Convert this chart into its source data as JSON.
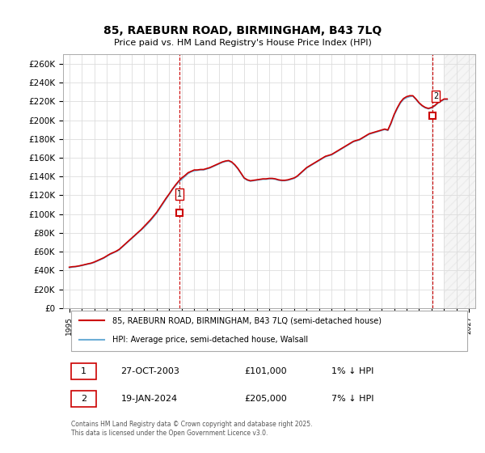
{
  "title": "85, RAEBURN ROAD, BIRMINGHAM, B43 7LQ",
  "subtitle": "Price paid vs. HM Land Registry's House Price Index (HPI)",
  "ylabel_ticks": [
    0,
    20000,
    40000,
    60000,
    80000,
    100000,
    120000,
    140000,
    160000,
    180000,
    200000,
    220000,
    240000,
    260000
  ],
  "ylabel_labels": [
    "£0",
    "£20K",
    "£40K",
    "£60K",
    "£80K",
    "£100K",
    "£120K",
    "£140K",
    "£160K",
    "£180K",
    "£200K",
    "£220K",
    "£240K",
    "£260K"
  ],
  "xlim": [
    1994.5,
    2027.5
  ],
  "ylim": [
    0,
    270000
  ],
  "hpi_color": "#6daed6",
  "price_color": "#cc0000",
  "marker_color": "#cc0000",
  "background_color": "#ffffff",
  "grid_color": "#dddddd",
  "sale1_x": 2003.82,
  "sale1_y": 101000,
  "sale1_label": "1",
  "sale2_x": 2024.05,
  "sale2_y": 205000,
  "sale2_label": "2",
  "legend_line1": "85, RAEBURN ROAD, BIRMINGHAM, B43 7LQ (semi-detached house)",
  "legend_line2": "HPI: Average price, semi-detached house, Walsall",
  "table_row1": [
    "1",
    "27-OCT-2003",
    "£101,000",
    "1% ↓ HPI"
  ],
  "table_row2": [
    "2",
    "19-JAN-2024",
    "£205,000",
    "7% ↓ HPI"
  ],
  "copyright": "Contains HM Land Registry data © Crown copyright and database right 2025.\nThis data is licensed under the Open Government Licence v3.0.",
  "hpi_years": [
    1995,
    1995.25,
    1995.5,
    1995.75,
    1996,
    1996.25,
    1996.5,
    1996.75,
    1997,
    1997.25,
    1997.5,
    1997.75,
    1998,
    1998.25,
    1998.5,
    1998.75,
    1999,
    1999.25,
    1999.5,
    1999.75,
    2000,
    2000.25,
    2000.5,
    2000.75,
    2001,
    2001.25,
    2001.5,
    2001.75,
    2002,
    2002.25,
    2002.5,
    2002.75,
    2003,
    2003.25,
    2003.5,
    2003.75,
    2004,
    2004.25,
    2004.5,
    2004.75,
    2005,
    2005.25,
    2005.5,
    2005.75,
    2006,
    2006.25,
    2006.5,
    2006.75,
    2007,
    2007.25,
    2007.5,
    2007.75,
    2008,
    2008.25,
    2008.5,
    2008.75,
    2009,
    2009.25,
    2009.5,
    2009.75,
    2010,
    2010.25,
    2010.5,
    2010.75,
    2011,
    2011.25,
    2011.5,
    2011.75,
    2012,
    2012.25,
    2012.5,
    2012.75,
    2013,
    2013.25,
    2013.5,
    2013.75,
    2014,
    2014.25,
    2014.5,
    2014.75,
    2015,
    2015.25,
    2015.5,
    2015.75,
    2016,
    2016.25,
    2016.5,
    2016.75,
    2017,
    2017.25,
    2017.5,
    2017.75,
    2018,
    2018.25,
    2018.5,
    2018.75,
    2019,
    2019.25,
    2019.5,
    2019.75,
    2020,
    2020.25,
    2020.5,
    2020.75,
    2021,
    2021.25,
    2021.5,
    2021.75,
    2022,
    2022.25,
    2022.5,
    2022.75,
    2023,
    2023.25,
    2023.5,
    2023.75,
    2024,
    2024.25,
    2024.5,
    2024.75,
    2025,
    2025.25
  ],
  "hpi_values": [
    43000,
    43500,
    44000,
    44500,
    45200,
    46000,
    46800,
    47500,
    48500,
    50000,
    51500,
    53000,
    55000,
    57000,
    58500,
    60000,
    62000,
    65000,
    68000,
    71000,
    74000,
    77000,
    80000,
    83000,
    86000,
    89500,
    93000,
    97000,
    101000,
    106000,
    111000,
    116000,
    121000,
    126000,
    130000,
    134000,
    137000,
    140000,
    143000,
    145000,
    146000,
    146500,
    147000,
    147000,
    148000,
    149000,
    150500,
    152000,
    153500,
    155000,
    156000,
    156500,
    155000,
    152000,
    148000,
    143000,
    138000,
    136000,
    135000,
    135500,
    136000,
    136500,
    137000,
    137000,
    137500,
    137500,
    137000,
    136000,
    135500,
    135500,
    136000,
    137000,
    138000,
    140000,
    143000,
    146000,
    149000,
    151000,
    153000,
    155000,
    157000,
    159000,
    161000,
    162000,
    163000,
    165000,
    167000,
    169000,
    171000,
    173000,
    175000,
    177000,
    178000,
    179000,
    181000,
    183000,
    185000,
    186000,
    187000,
    188000,
    189000,
    190000,
    189000,
    196000,
    205000,
    212000,
    218000,
    222000,
    224000,
    225000,
    225500,
    222000,
    218000,
    215000,
    213000,
    212000,
    213000,
    215000,
    218000,
    220000,
    222000,
    222000
  ],
  "price_years": [
    1995,
    1995.25,
    1995.5,
    1995.75,
    1996,
    1996.25,
    1996.5,
    1996.75,
    1997,
    1997.25,
    1997.5,
    1997.75,
    1998,
    1998.25,
    1998.5,
    1998.75,
    1999,
    1999.25,
    1999.5,
    1999.75,
    2000,
    2000.25,
    2000.5,
    2000.75,
    2001,
    2001.25,
    2001.5,
    2001.75,
    2002,
    2002.25,
    2002.5,
    2002.75,
    2003,
    2003.25,
    2003.5,
    2003.75,
    2004,
    2004.25,
    2004.5,
    2004.75,
    2005,
    2005.25,
    2005.5,
    2005.75,
    2006,
    2006.25,
    2006.5,
    2006.75,
    2007,
    2007.25,
    2007.5,
    2007.75,
    2008,
    2008.25,
    2008.5,
    2008.75,
    2009,
    2009.25,
    2009.5,
    2009.75,
    2010,
    2010.25,
    2010.5,
    2010.75,
    2011,
    2011.25,
    2011.5,
    2011.75,
    2012,
    2012.25,
    2012.5,
    2012.75,
    2013,
    2013.25,
    2013.5,
    2013.75,
    2014,
    2014.25,
    2014.5,
    2014.75,
    2015,
    2015.25,
    2015.5,
    2015.75,
    2016,
    2016.25,
    2016.5,
    2016.75,
    2017,
    2017.25,
    2017.5,
    2017.75,
    2018,
    2018.25,
    2018.5,
    2018.75,
    2019,
    2019.25,
    2019.5,
    2019.75,
    2020,
    2020.25,
    2020.5,
    2020.75,
    2021,
    2021.25,
    2021.5,
    2021.75,
    2022,
    2022.25,
    2022.5,
    2022.75,
    2023,
    2023.25,
    2023.5,
    2023.75,
    2024,
    2024.25,
    2024.5,
    2024.75,
    2025,
    2025.25
  ],
  "price_values": [
    43500,
    44000,
    44200,
    44800,
    45500,
    46300,
    47100,
    47800,
    49000,
    50500,
    52000,
    53500,
    55500,
    57500,
    59000,
    60500,
    62500,
    65500,
    68500,
    71500,
    74500,
    77500,
    80500,
    83500,
    87000,
    90500,
    94000,
    98000,
    102000,
    107000,
    112000,
    117000,
    121500,
    126500,
    131000,
    135000,
    138500,
    141000,
    144000,
    145500,
    147000,
    147000,
    147500,
    147500,
    148500,
    149500,
    151000,
    152500,
    154000,
    155500,
    156500,
    157000,
    155500,
    152500,
    148500,
    143500,
    138500,
    136500,
    135500,
    136000,
    136500,
    137000,
    137500,
    137500,
    138000,
    138000,
    137500,
    136500,
    136000,
    136000,
    136500,
    137500,
    138500,
    140500,
    143500,
    146500,
    149500,
    151500,
    153500,
    155500,
    157500,
    159500,
    161500,
    162500,
    163500,
    165500,
    167500,
    169500,
    171500,
    173500,
    175500,
    177500,
    178500,
    179500,
    181500,
    183500,
    185500,
    186500,
    187500,
    188500,
    189500,
    190500,
    189500,
    197000,
    206000,
    213000,
    219000,
    223000,
    225000,
    226000,
    226000,
    222500,
    218500,
    215500,
    213500,
    212500,
    213500,
    215500,
    218500,
    220500,
    222500,
    222500
  ]
}
